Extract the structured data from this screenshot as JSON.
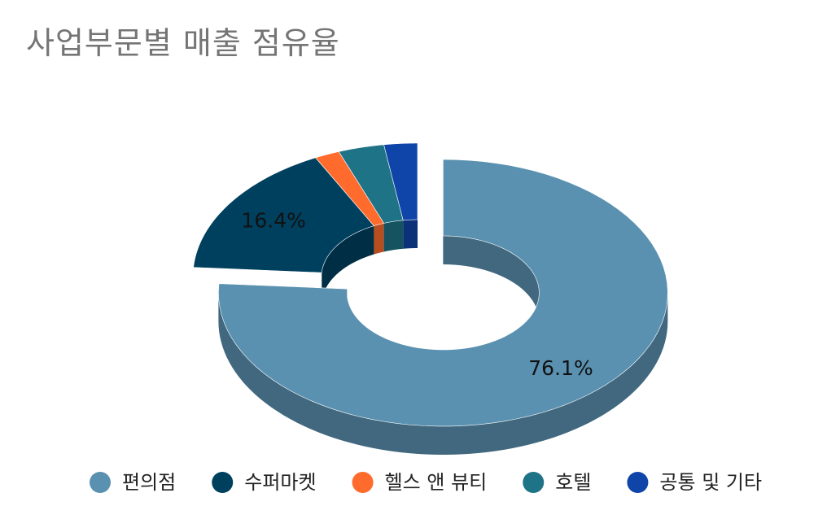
{
  "chart_data": {
    "type": "pie",
    "subtype": "3d-donut",
    "title": "사업부문별 매출 점유율",
    "legend_position": "bottom",
    "slices": [
      {
        "name": "편의점",
        "value": 76.1,
        "label": "76.1%",
        "color": "#5a91b0"
      },
      {
        "name": "수퍼마켓",
        "value": 16.4,
        "label": "16.4%",
        "color": "#00405f"
      },
      {
        "name": "헬스 앤 뷰티",
        "value": 1.8,
        "label": "",
        "color": "#ff6b2d"
      },
      {
        "name": "호텔",
        "value": 3.3,
        "label": "",
        "color": "#1f7386"
      },
      {
        "name": "공통 및 기타",
        "value": 2.4,
        "label": "",
        "color": "#0f44a8"
      }
    ],
    "exploded_slice": "편의점"
  }
}
